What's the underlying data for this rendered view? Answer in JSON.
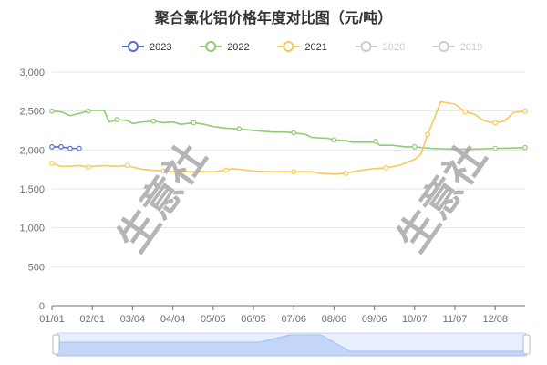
{
  "chart_data": {
    "type": "line",
    "title": "聚合氯化铝价格年度对比图（元/吨）",
    "x_ticks": [
      "01/01",
      "02/01",
      "03/04",
      "04/04",
      "05/05",
      "06/05",
      "07/06",
      "08/06",
      "09/06",
      "10/07",
      "11/07",
      "12/08"
    ],
    "y_ticks": [
      "0",
      "500",
      "1,000",
      "1,500",
      "2,000",
      "2,500",
      "3,000"
    ],
    "ylim": [
      0,
      3000
    ],
    "legend_position": "top-center",
    "grid": "horizontal",
    "watermark": "生意社",
    "series": [
      {
        "name": "2023",
        "color": "#5470c6",
        "active": true,
        "points": [
          [
            "01/01",
            2040
          ],
          [
            "01/08",
            2040
          ],
          [
            "01/15",
            2020
          ],
          [
            "01/22",
            2020
          ]
        ]
      },
      {
        "name": "2022",
        "color": "#91cc75",
        "active": true,
        "points": [
          [
            "01/01",
            2500
          ],
          [
            "01/08",
            2490
          ],
          [
            "01/15",
            2440
          ],
          [
            "01/22",
            2470
          ],
          [
            "01/29",
            2500
          ],
          [
            "02/01",
            2510
          ],
          [
            "02/10",
            2510
          ],
          [
            "02/14",
            2360
          ],
          [
            "02/20",
            2390
          ],
          [
            "02/28",
            2380
          ],
          [
            "03/04",
            2340
          ],
          [
            "03/12",
            2360
          ],
          [
            "03/20",
            2370
          ],
          [
            "03/28",
            2350
          ],
          [
            "04/04",
            2360
          ],
          [
            "04/10",
            2330
          ],
          [
            "04/20",
            2350
          ],
          [
            "04/28",
            2330
          ],
          [
            "05/05",
            2300
          ],
          [
            "05/15",
            2280
          ],
          [
            "05/25",
            2270
          ],
          [
            "06/05",
            2250
          ],
          [
            "06/20",
            2230
          ],
          [
            "06/30",
            2230
          ],
          [
            "07/06",
            2220
          ],
          [
            "07/15",
            2200
          ],
          [
            "07/20",
            2160
          ],
          [
            "08/01",
            2150
          ],
          [
            "08/06",
            2130
          ],
          [
            "08/15",
            2120
          ],
          [
            "08/20",
            2100
          ],
          [
            "09/06",
            2100
          ],
          [
            "09/07",
            2110
          ],
          [
            "09/10",
            2060
          ],
          [
            "09/20",
            2060
          ],
          [
            "09/30",
            2040
          ],
          [
            "10/07",
            2040
          ],
          [
            "10/20",
            2020
          ],
          [
            "11/07",
            2010
          ],
          [
            "11/20",
            2010
          ],
          [
            "12/08",
            2020
          ],
          [
            "12/31",
            2030
          ]
        ]
      },
      {
        "name": "2021",
        "color": "#fac858",
        "active": true,
        "points": [
          [
            "01/01",
            1830
          ],
          [
            "01/08",
            1790
          ],
          [
            "01/15",
            1790
          ],
          [
            "01/22",
            1800
          ],
          [
            "01/29",
            1780
          ],
          [
            "02/01",
            1790
          ],
          [
            "02/10",
            1800
          ],
          [
            "02/20",
            1790
          ],
          [
            "02/28",
            1800
          ],
          [
            "03/04",
            1780
          ],
          [
            "03/12",
            1750
          ],
          [
            "03/20",
            1740
          ],
          [
            "03/28",
            1730
          ],
          [
            "04/04",
            1720
          ],
          [
            "04/20",
            1720
          ],
          [
            "05/05",
            1720
          ],
          [
            "05/15",
            1740
          ],
          [
            "05/20",
            1760
          ],
          [
            "06/05",
            1730
          ],
          [
            "06/20",
            1720
          ],
          [
            "07/06",
            1720
          ],
          [
            "07/20",
            1720
          ],
          [
            "07/26",
            1700
          ],
          [
            "08/06",
            1690
          ],
          [
            "08/15",
            1700
          ],
          [
            "08/20",
            1720
          ],
          [
            "09/01",
            1750
          ],
          [
            "09/06",
            1760
          ],
          [
            "09/15",
            1770
          ],
          [
            "09/25",
            1800
          ],
          [
            "10/07",
            1880
          ],
          [
            "10/12",
            1950
          ],
          [
            "10/17",
            2200
          ],
          [
            "10/22",
            2400
          ],
          [
            "10/27",
            2620
          ],
          [
            "11/07",
            2590
          ],
          [
            "11/15",
            2490
          ],
          [
            "11/22",
            2460
          ],
          [
            "11/29",
            2380
          ],
          [
            "12/03",
            2360
          ],
          [
            "12/08",
            2350
          ],
          [
            "12/15",
            2370
          ],
          [
            "12/22",
            2480
          ],
          [
            "12/31",
            2500
          ]
        ]
      },
      {
        "name": "2020",
        "color": "#cccccc",
        "active": false,
        "points": []
      },
      {
        "name": "2019",
        "color": "#cccccc",
        "active": false,
        "points": []
      }
    ]
  }
}
